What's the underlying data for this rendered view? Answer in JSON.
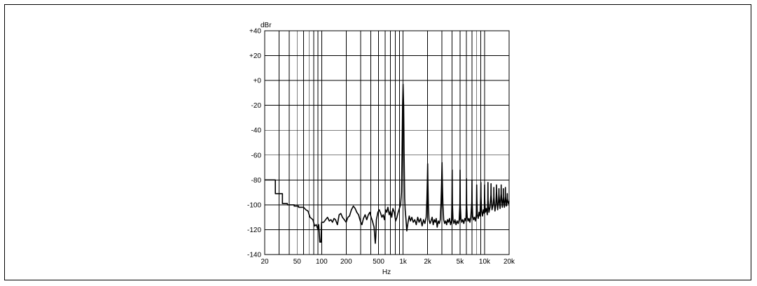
{
  "chart_data": {
    "type": "line",
    "title": "",
    "xlabel": "Hz",
    "ylabel": "dBr",
    "x_scale": "log",
    "xlim": [
      20,
      20000
    ],
    "ylim": [
      -140,
      40
    ],
    "grid": true,
    "x_ticks": [
      {
        "value": 20,
        "label": "20"
      },
      {
        "value": 50,
        "label": "50"
      },
      {
        "value": 100,
        "label": "100"
      },
      {
        "value": 200,
        "label": "200"
      },
      {
        "value": 500,
        "label": "500"
      },
      {
        "value": 1000,
        "label": "1k"
      },
      {
        "value": 2000,
        "label": "2k"
      },
      {
        "value": 5000,
        "label": "5k"
      },
      {
        "value": 10000,
        "label": "10k"
      },
      {
        "value": 20000,
        "label": "20k"
      }
    ],
    "y_ticks": [
      {
        "value": 40,
        "label": "+40"
      },
      {
        "value": 20,
        "label": "+20"
      },
      {
        "value": 0,
        "label": "+0"
      },
      {
        "value": -20,
        "label": "-20"
      },
      {
        "value": -40,
        "label": "-40"
      },
      {
        "value": -60,
        "label": "-60"
      },
      {
        "value": -80,
        "label": "-80"
      },
      {
        "value": -100,
        "label": "-100"
      },
      {
        "value": -120,
        "label": "-120"
      },
      {
        "value": -140,
        "label": "-140"
      }
    ],
    "series": [
      {
        "points": [
          [
            20,
            -80
          ],
          [
            27,
            -80
          ],
          [
            27,
            -91
          ],
          [
            33,
            -91
          ],
          [
            33,
            -99
          ],
          [
            38,
            -99
          ],
          [
            38,
            -100
          ],
          [
            46,
            -100
          ],
          [
            46,
            -101
          ],
          [
            52,
            -101
          ],
          [
            52,
            -102
          ],
          [
            60,
            -102
          ],
          [
            64,
            -104
          ],
          [
            68,
            -105
          ],
          [
            72,
            -110
          ],
          [
            78,
            -112
          ],
          [
            82,
            -117
          ],
          [
            86,
            -116
          ],
          [
            90,
            -120
          ],
          [
            92,
            -116
          ],
          [
            95,
            -130
          ],
          [
            98,
            -130
          ],
          [
            100,
            -114
          ],
          [
            106,
            -114
          ],
          [
            112,
            -112
          ],
          [
            118,
            -110
          ],
          [
            124,
            -113
          ],
          [
            130,
            -112
          ],
          [
            136,
            -114
          ],
          [
            142,
            -111
          ],
          [
            148,
            -112
          ],
          [
            156,
            -116
          ],
          [
            164,
            -108
          ],
          [
            172,
            -107
          ],
          [
            180,
            -110
          ],
          [
            190,
            -112
          ],
          [
            200,
            -114
          ],
          [
            210,
            -110
          ],
          [
            220,
            -109
          ],
          [
            232,
            -104
          ],
          [
            245,
            -101
          ],
          [
            258,
            -103
          ],
          [
            270,
            -106
          ],
          [
            284,
            -108
          ],
          [
            298,
            -113
          ],
          [
            312,
            -116
          ],
          [
            326,
            -111
          ],
          [
            342,
            -108
          ],
          [
            358,
            -112
          ],
          [
            374,
            -108
          ],
          [
            390,
            -106
          ],
          [
            405,
            -110
          ],
          [
            420,
            -113
          ],
          [
            440,
            -118
          ],
          [
            455,
            -131
          ],
          [
            462,
            -126
          ],
          [
            470,
            -112
          ],
          [
            490,
            -106
          ],
          [
            510,
            -104
          ],
          [
            530,
            -107
          ],
          [
            550,
            -110
          ],
          [
            570,
            -108
          ],
          [
            590,
            -112
          ],
          [
            610,
            -104
          ],
          [
            630,
            -106
          ],
          [
            650,
            -102
          ],
          [
            675,
            -108
          ],
          [
            700,
            -105
          ],
          [
            725,
            -110
          ],
          [
            750,
            -103
          ],
          [
            780,
            -106
          ],
          [
            810,
            -113
          ],
          [
            840,
            -110
          ],
          [
            870,
            -106
          ],
          [
            900,
            -103
          ],
          [
            930,
            -100
          ],
          [
            955,
            -90
          ],
          [
            970,
            -60
          ],
          [
            985,
            -20
          ],
          [
            1000,
            -3
          ],
          [
            1015,
            -20
          ],
          [
            1030,
            -60
          ],
          [
            1045,
            -95
          ],
          [
            1060,
            -104
          ],
          [
            1080,
            -110
          ],
          [
            1110,
            -121
          ],
          [
            1150,
            -114
          ],
          [
            1190,
            -109
          ],
          [
            1230,
            -113
          ],
          [
            1280,
            -110
          ],
          [
            1330,
            -114
          ],
          [
            1390,
            -112
          ],
          [
            1450,
            -116
          ],
          [
            1510,
            -110
          ],
          [
            1570,
            -114
          ],
          [
            1640,
            -111
          ],
          [
            1710,
            -117
          ],
          [
            1780,
            -112
          ],
          [
            1850,
            -115
          ],
          [
            1920,
            -110
          ],
          [
            1960,
            -96
          ],
          [
            1985,
            -80
          ],
          [
            2000,
            -67
          ],
          [
            2015,
            -80
          ],
          [
            2040,
            -100
          ],
          [
            2080,
            -112
          ],
          [
            2140,
            -115
          ],
          [
            2200,
            -113
          ],
          [
            2270,
            -110
          ],
          [
            2340,
            -116
          ],
          [
            2410,
            -112
          ],
          [
            2480,
            -114
          ],
          [
            2550,
            -111
          ],
          [
            2620,
            -118
          ],
          [
            2700,
            -113
          ],
          [
            2780,
            -115
          ],
          [
            2860,
            -112
          ],
          [
            2920,
            -98
          ],
          [
            2970,
            -82
          ],
          [
            3000,
            -66
          ],
          [
            3030,
            -82
          ],
          [
            3080,
            -100
          ],
          [
            3150,
            -112
          ],
          [
            3240,
            -115
          ],
          [
            3330,
            -113
          ],
          [
            3420,
            -116
          ],
          [
            3510,
            -112
          ],
          [
            3610,
            -114
          ],
          [
            3710,
            -111
          ],
          [
            3820,
            -116
          ],
          [
            3930,
            -113
          ],
          [
            3970,
            -100
          ],
          [
            4000,
            -72
          ],
          [
            4030,
            -100
          ],
          [
            4100,
            -112
          ],
          [
            4200,
            -115
          ],
          [
            4330,
            -112
          ],
          [
            4460,
            -116
          ],
          [
            4600,
            -113
          ],
          [
            4740,
            -115
          ],
          [
            4880,
            -112
          ],
          [
            4970,
            -100
          ],
          [
            5000,
            -72
          ],
          [
            5030,
            -100
          ],
          [
            5120,
            -111
          ],
          [
            5250,
            -114
          ],
          [
            5400,
            -112
          ],
          [
            5560,
            -115
          ],
          [
            5730,
            -111
          ],
          [
            5900,
            -113
          ],
          [
            5970,
            -100
          ],
          [
            6000,
            -79
          ],
          [
            6030,
            -100
          ],
          [
            6120,
            -110
          ],
          [
            6270,
            -113
          ],
          [
            6430,
            -111
          ],
          [
            6600,
            -114
          ],
          [
            6780,
            -110
          ],
          [
            6960,
            -98
          ],
          [
            7000,
            -80
          ],
          [
            7040,
            -98
          ],
          [
            7150,
            -109
          ],
          [
            7330,
            -112
          ],
          [
            7520,
            -110
          ],
          [
            7720,
            -113
          ],
          [
            7920,
            -108
          ],
          [
            7960,
            -96
          ],
          [
            8000,
            -84
          ],
          [
            8040,
            -96
          ],
          [
            8150,
            -108
          ],
          [
            8350,
            -111
          ],
          [
            8560,
            -106
          ],
          [
            8780,
            -109
          ],
          [
            8960,
            -94
          ],
          [
            9000,
            -82
          ],
          [
            9040,
            -94
          ],
          [
            9180,
            -105
          ],
          [
            9420,
            -109
          ],
          [
            9660,
            -104
          ],
          [
            9900,
            -107
          ],
          [
            9960,
            -95
          ],
          [
            10000,
            -84
          ],
          [
            10040,
            -95
          ],
          [
            10200,
            -106
          ],
          [
            10500,
            -103
          ],
          [
            10800,
            -108
          ],
          [
            10960,
            -96
          ],
          [
            11000,
            -82
          ],
          [
            11040,
            -96
          ],
          [
            11300,
            -106
          ],
          [
            11650,
            -102
          ],
          [
            11960,
            -92
          ],
          [
            12000,
            -83
          ],
          [
            12040,
            -92
          ],
          [
            12350,
            -104
          ],
          [
            12700,
            -100
          ],
          [
            12960,
            -94
          ],
          [
            13000,
            -86
          ],
          [
            13040,
            -94
          ],
          [
            13400,
            -105
          ],
          [
            13780,
            -99
          ],
          [
            13960,
            -90
          ],
          [
            14000,
            -84
          ],
          [
            14040,
            -90
          ],
          [
            14450,
            -104
          ],
          [
            14800,
            -98
          ],
          [
            14960,
            -92
          ],
          [
            15000,
            -87
          ],
          [
            15040,
            -92
          ],
          [
            15500,
            -103
          ],
          [
            15960,
            -91
          ],
          [
            16000,
            -84
          ],
          [
            16040,
            -91
          ],
          [
            16500,
            -102
          ],
          [
            16960,
            -94
          ],
          [
            17000,
            -87
          ],
          [
            17040,
            -94
          ],
          [
            17500,
            -102
          ],
          [
            17960,
            -93
          ],
          [
            18000,
            -86
          ],
          [
            18040,
            -93
          ],
          [
            18500,
            -101
          ],
          [
            18960,
            -95
          ],
          [
            19000,
            -91
          ],
          [
            19040,
            -95
          ],
          [
            19500,
            -99
          ],
          [
            20000,
            -97
          ]
        ]
      }
    ]
  }
}
